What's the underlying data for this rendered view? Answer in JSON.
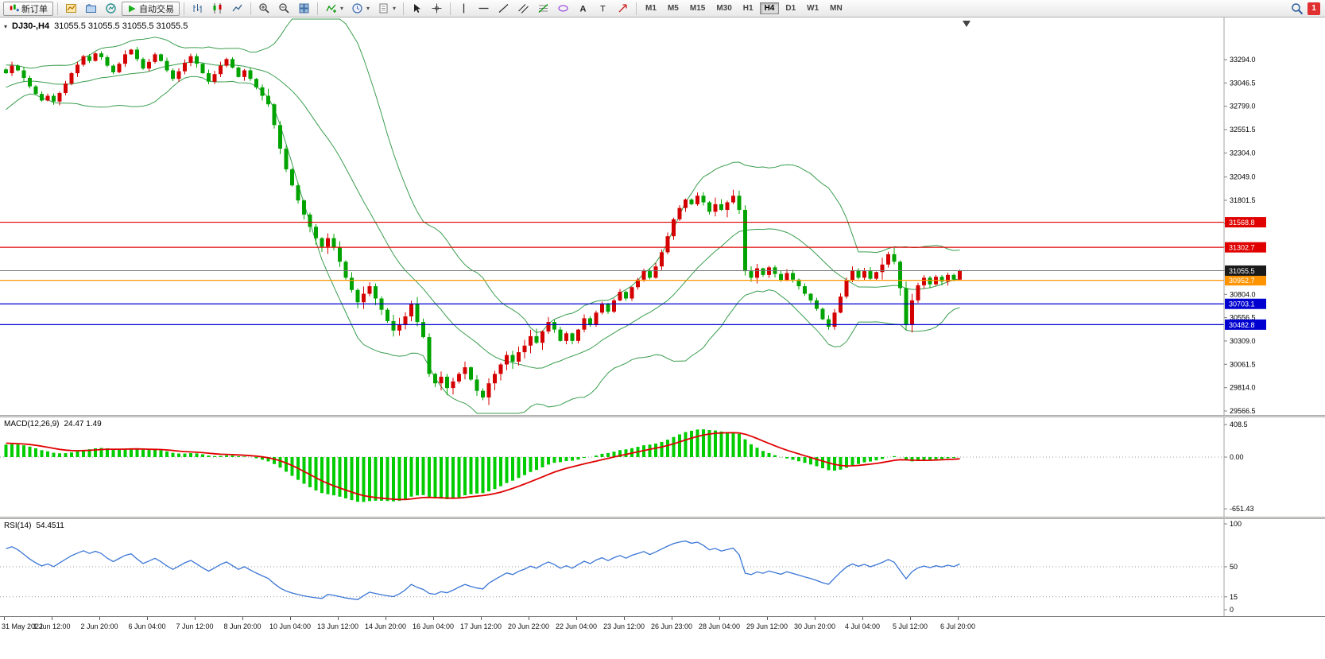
{
  "toolbar": {
    "new_order_label": "新订单",
    "autotrading_label": "自动交易",
    "timeframes": [
      "M1",
      "M5",
      "M15",
      "M30",
      "H1",
      "H4",
      "D1",
      "W1",
      "MN"
    ],
    "active_timeframe": "H4",
    "alert_count": "1"
  },
  "colors": {
    "up": "#d40000",
    "down": "#00a300",
    "bollinger": "#3a9d4e",
    "macd_hist": "#00cc00",
    "macd_signal": "#e00000",
    "rsi": "#3b76d6",
    "level_red": "#e00000",
    "level_orange": "#ff9400",
    "level_blue": "#0000d0",
    "bid_line": "#777777",
    "bid_tag": "#1a1a1a"
  },
  "main_chart": {
    "symbol_title": "DJ30-,H4",
    "ohlc_text": "31055.5 31055.5 31055.5 31055.5",
    "axis_labels": [
      "33294.0",
      "33046.5",
      "32799.0",
      "32551.5",
      "32304.0",
      "32049.0",
      "31801.5",
      "31554.0",
      "31306.5",
      "31059.0",
      "30804.0",
      "30556.5",
      "30309.0",
      "30061.5",
      "29814.0",
      "29566.5"
    ],
    "levels": [
      {
        "price": 31568.8,
        "label": "31568.8",
        "color": "#e00000",
        "tag": "#e00000"
      },
      {
        "price": 31302.7,
        "label": "31302.7",
        "color": "#e00000",
        "tag": "#e00000"
      },
      {
        "price": 30952.7,
        "label": "30952.7",
        "color": "#ff9400",
        "tag": "#ff9400"
      },
      {
        "price": 30703.1,
        "label": "30703.1",
        "color": "#0000d0",
        "tag": "#0000d0"
      },
      {
        "price": 30482.8,
        "label": "30482.8",
        "color": "#0000d0",
        "tag": "#0000d0"
      }
    ],
    "bid": {
      "price": 31055.5,
      "label": "31055.5",
      "color": "#777777",
      "tag": "#1a1a1a"
    }
  },
  "chart_data": {
    "type": "candlestick",
    "symbol": "DJ30-",
    "period": "H4",
    "current_ohlc": {
      "open": 31055.5,
      "high": 31055.5,
      "low": 31055.5,
      "close": 31055.5
    },
    "y_axis_range": [
      29540,
      33740
    ],
    "x_labels": [
      "31 May 2022",
      "1 Jun 12:00",
      "2 Jun 20:00",
      "6 Jun 04:00",
      "7 Jun 12:00",
      "8 Jun 20:00",
      "10 Jun 04:00",
      "13 Jun 12:00",
      "14 Jun 20:00",
      "16 Jun 04:00",
      "17 Jun 12:00",
      "20 Jun 22:00",
      "22 Jun 04:00",
      "23 Jun 12:00",
      "26 Jun 23:00",
      "28 Jun 04:00",
      "29 Jun 12:00",
      "30 Jun 20:00",
      "4 Jul 04:00",
      "5 Jul 12:00",
      "6 Jul 20:00"
    ],
    "bars_per_label": 8,
    "closes": [
      33150,
      33230,
      33180,
      33100,
      33010,
      32930,
      32860,
      32910,
      32850,
      32940,
      33040,
      33150,
      33240,
      33330,
      33280,
      33360,
      33320,
      33230,
      33160,
      33250,
      33350,
      33400,
      33300,
      33200,
      33270,
      33350,
      33280,
      33180,
      33090,
      33170,
      33260,
      33330,
      33250,
      33150,
      33060,
      33140,
      33230,
      33300,
      33210,
      33110,
      33180,
      33090,
      33000,
      32910,
      32820,
      32600,
      32350,
      32130,
      31960,
      31800,
      31650,
      31520,
      31400,
      31310,
      31400,
      31300,
      31150,
      30980,
      30850,
      30720,
      30810,
      30890,
      30760,
      30640,
      30520,
      30420,
      30480,
      30570,
      30700,
      30510,
      30350,
      29960,
      29860,
      29930,
      29810,
      29880,
      29960,
      30030,
      29900,
      29780,
      29710,
      29860,
      29960,
      30060,
      30160,
      30090,
      30190,
      30260,
      30360,
      30290,
      30410,
      30510,
      30430,
      30310,
      30390,
      30310,
      30430,
      30550,
      30480,
      30610,
      30700,
      30620,
      30740,
      30830,
      30760,
      30880,
      30960,
      31050,
      30980,
      31100,
      31250,
      31420,
      31600,
      31720,
      31810,
      31760,
      31850,
      31780,
      31680,
      31760,
      31700,
      31780,
      31850,
      31700,
      31050,
      30980,
      31080,
      31010,
      31090,
      31020,
      30950,
      31030,
      30960,
      30890,
      30810,
      30740,
      30650,
      30540,
      30460,
      30610,
      30780,
      30950,
      31060,
      30980,
      31050,
      30970,
      31040,
      31120,
      31230,
      31150,
      30870,
      30480,
      30740,
      30900,
      30980,
      30910,
      30990,
      30940,
      31010,
      30960,
      31055.5
    ],
    "indicators": {
      "bollinger": {
        "label": "Bollinger Bands",
        "period": 20,
        "deviation": 2
      },
      "macd": {
        "label": "MACD(12,26,9)",
        "value_text": "24.47 1.49",
        "axis_labels": [
          "408.5",
          "0.00",
          "-651.43"
        ]
      },
      "rsi": {
        "label": "RSI(14)",
        "value_text": "54.4511",
        "axis_labels": [
          "100",
          "50",
          "15",
          "0"
        ],
        "levels": [
          50,
          15
        ]
      }
    }
  }
}
